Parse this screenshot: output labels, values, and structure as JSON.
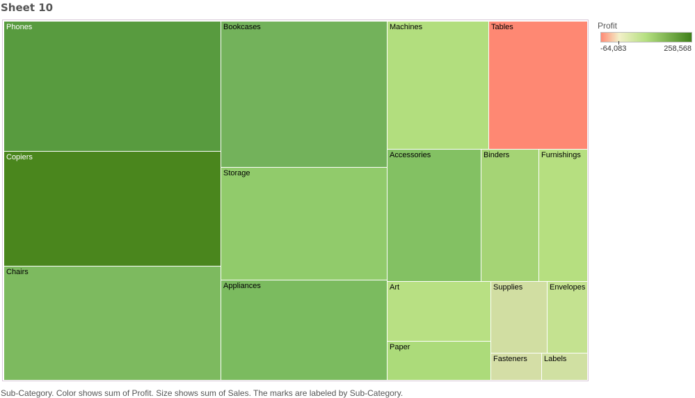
{
  "sheet_title": "Sheet 10",
  "caption": "Sub-Category.  Color shows sum of Profit.  Size shows sum of Sales.  The marks are labeled by Sub-Category.",
  "legend": {
    "title": "Profit",
    "min_label": "-64,083",
    "max_label": "258,568",
    "colors": [
      "#ff8a75",
      "#f3f0c8",
      "#b4df80",
      "#3f801a"
    ]
  },
  "chart_data": {
    "type": "treemap",
    "size_measure": "Sales",
    "color_measure": "Profit",
    "items": [
      {
        "label": "Phones",
        "color": "#589b3f",
        "label_color": "#ffffff"
      },
      {
        "label": "Copiers",
        "color": "#4a861d",
        "label_color": "#ffffff"
      },
      {
        "label": "Chairs",
        "color": "#7dba5f",
        "label_color": "#000000"
      },
      {
        "label": "Bookcases",
        "color": "#73b25b",
        "label_color": "#000000"
      },
      {
        "label": "Storage",
        "color": "#91cb6b",
        "label_color": "#000000"
      },
      {
        "label": "Appliances",
        "color": "#7bbb5f",
        "label_color": "#000000"
      },
      {
        "label": "Machines",
        "color": "#b2de7e",
        "label_color": "#000000"
      },
      {
        "label": "Tables",
        "color": "#fe8873",
        "label_color": "#000000"
      },
      {
        "label": "Accessories",
        "color": "#83c163",
        "label_color": "#000000"
      },
      {
        "label": "Binders",
        "color": "#a5d475",
        "label_color": "#000000"
      },
      {
        "label": "Furnishings",
        "color": "#b6df80",
        "label_color": "#000000"
      },
      {
        "label": "Art",
        "color": "#b8e083",
        "label_color": "#000000"
      },
      {
        "label": "Paper",
        "color": "#acdb7a",
        "label_color": "#000000"
      },
      {
        "label": "Supplies",
        "color": "#d1dea2",
        "label_color": "#000000"
      },
      {
        "label": "Envelopes",
        "color": "#c4e290",
        "label_color": "#000000"
      },
      {
        "label": "Fasteners",
        "color": "#d4dea6",
        "label_color": "#000000"
      },
      {
        "label": "Labels",
        "color": "#d0e0a2",
        "label_color": "#000000"
      }
    ]
  }
}
